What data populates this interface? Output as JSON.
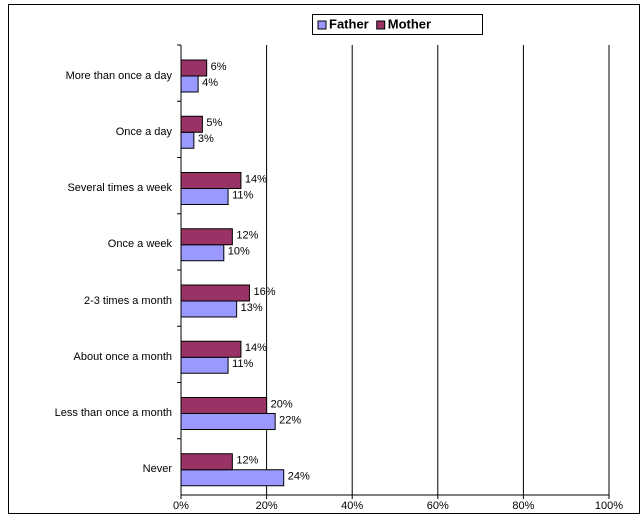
{
  "chart_data": {
    "type": "barh",
    "categories": [
      "More than once a day",
      "Once a day",
      "Several times a week",
      "Once a week",
      "2-3 times a month",
      "About once a month",
      "Less than once a month",
      "Never"
    ],
    "series": [
      {
        "name": "Father",
        "color": "#9999ff",
        "values": [
          4,
          3,
          11,
          10,
          13,
          11,
          22,
          24
        ],
        "value_labels": [
          "4%",
          "3%",
          "11%",
          "10%",
          "13%",
          "11%",
          "22%",
          "24%"
        ]
      },
      {
        "name": "Mother",
        "color": "#993366",
        "values": [
          6,
          5,
          14,
          12,
          16,
          14,
          20,
          12
        ],
        "value_labels": [
          "6%",
          "5%",
          "14%",
          "12%",
          "16%",
          "14%",
          "20%",
          "12%"
        ]
      }
    ],
    "xlim": [
      0,
      100
    ],
    "xticks": [
      {
        "value": 0,
        "label": "0%"
      },
      {
        "value": 20,
        "label": "20%"
      },
      {
        "value": 40,
        "label": "40%"
      },
      {
        "value": 60,
        "label": "60%"
      },
      {
        "value": 80,
        "label": "80%"
      },
      {
        "value": 100,
        "label": "100%"
      }
    ],
    "grid": true,
    "legend": "top"
  }
}
